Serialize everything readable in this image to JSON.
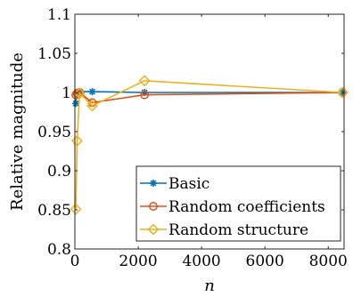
{
  "chart_data": {
    "type": "line",
    "xlabel": "n",
    "ylabel": "Relative magnitude",
    "xlim": [
      0,
      8500
    ],
    "ylim": [
      0.8,
      1.1
    ],
    "xticks": [
      0,
      2000,
      4000,
      6000,
      8000
    ],
    "yticks": [
      0.8,
      0.85,
      0.9,
      0.95,
      1,
      1.05,
      1.1
    ],
    "xtick_labels": [
      "0",
      "2000",
      "4000",
      "6000",
      "8000"
    ],
    "ytick_labels": [
      "0.8",
      "0.85",
      "0.9",
      "0.95",
      "1",
      "1.05",
      "1.1"
    ],
    "grid": false,
    "legend_position": "bottom-right",
    "series": [
      {
        "name": "Basic",
        "color": "#0072BD",
        "marker": "asterisk",
        "x": [
          30,
          70,
          150,
          550,
          2200,
          8450
        ],
        "y": [
          0.986,
          1.0,
          1.001,
          1.001,
          1.0,
          1.0
        ]
      },
      {
        "name": "Random coefficients",
        "color": "#D95319",
        "marker": "circle",
        "x": [
          30,
          70,
          150,
          550,
          2200,
          8450
        ],
        "y": [
          0.997,
          0.999,
          1.0,
          0.987,
          0.997,
          1.0
        ]
      },
      {
        "name": "Random structure",
        "color": "#EDB120",
        "marker": "diamond",
        "x": [
          30,
          70,
          150,
          550,
          2200,
          8450
        ],
        "y": [
          0.851,
          0.938,
          0.999,
          0.983,
          1.015,
          1.0
        ]
      }
    ]
  }
}
